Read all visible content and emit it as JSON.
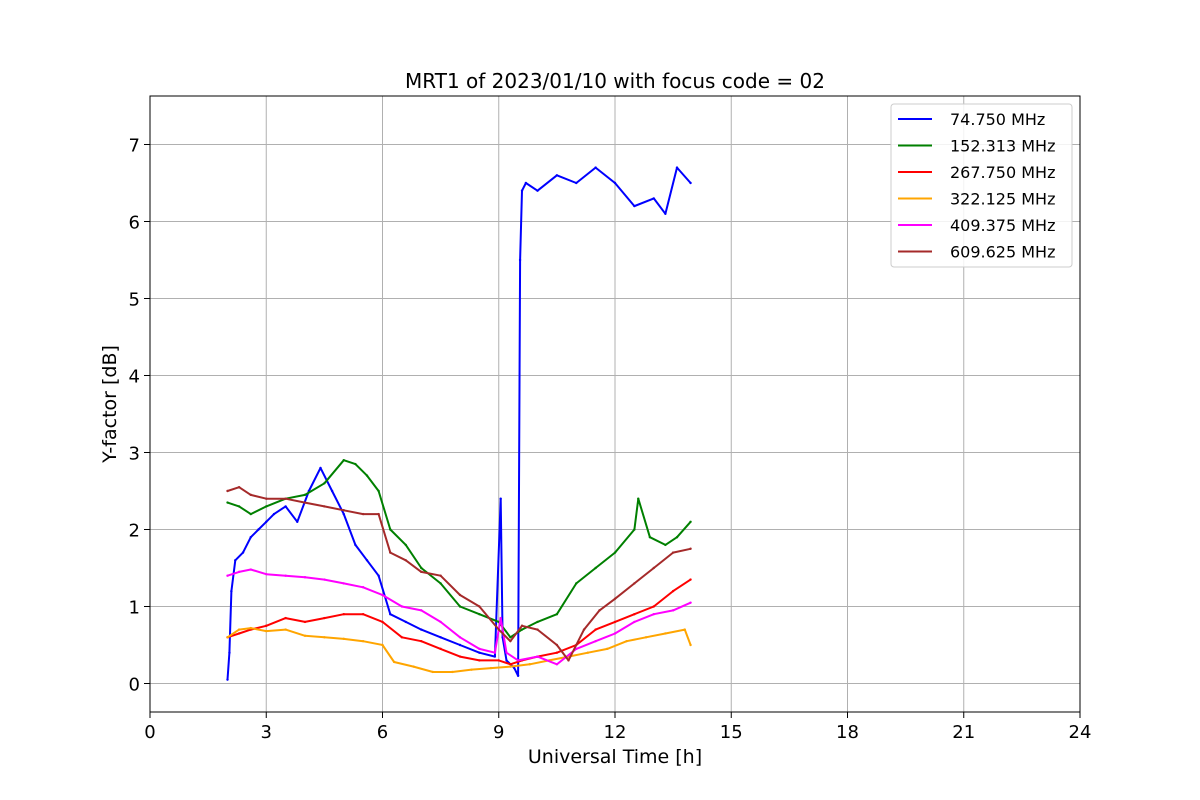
{
  "chart_data": {
    "type": "line",
    "title": "MRT1 of 2023/01/10 with focus code = 02",
    "xlabel": "Universal Time [h]",
    "ylabel": "Y-factor [dB]",
    "xlim": [
      0,
      24
    ],
    "ylim": [
      -0.37,
      7.63
    ],
    "xticks": [
      0,
      3,
      6,
      9,
      12,
      15,
      18,
      21,
      24
    ],
    "yticks": [
      0,
      1,
      2,
      3,
      4,
      5,
      6,
      7
    ],
    "grid": true,
    "legend_position": "top-right",
    "series": [
      {
        "name": " 74.750 MHz",
        "color": "#0000ff",
        "x": [
          2.0,
          2.05,
          2.1,
          2.2,
          2.4,
          2.6,
          2.8,
          3.0,
          3.2,
          3.5,
          3.8,
          4.1,
          4.4,
          4.7,
          5.0,
          5.3,
          5.6,
          5.9,
          6.2,
          6.6,
          7.0,
          7.5,
          8.0,
          8.5,
          8.9,
          9.05,
          9.1,
          9.2,
          9.4,
          9.5,
          9.55,
          9.6,
          9.7,
          10.0,
          10.5,
          11.0,
          11.5,
          12.0,
          12.5,
          13.0,
          13.3,
          13.6,
          13.95
        ],
        "y": [
          0.05,
          0.4,
          1.2,
          1.6,
          1.7,
          1.9,
          2.0,
          2.1,
          2.2,
          2.3,
          2.1,
          2.5,
          2.8,
          2.5,
          2.2,
          1.8,
          1.6,
          1.4,
          0.9,
          0.8,
          0.7,
          0.6,
          0.5,
          0.4,
          0.35,
          2.4,
          0.6,
          0.3,
          0.2,
          0.1,
          5.5,
          6.4,
          6.5,
          6.4,
          6.6,
          6.5,
          6.7,
          6.5,
          6.2,
          6.3,
          6.1,
          6.7,
          6.5
        ]
      },
      {
        "name": "152.313 MHz",
        "color": "#008000",
        "x": [
          2.0,
          2.3,
          2.6,
          3.0,
          3.5,
          4.0,
          4.5,
          5.0,
          5.3,
          5.6,
          5.9,
          6.2,
          6.6,
          7.0,
          7.5,
          8.0,
          8.5,
          9.0,
          9.3,
          9.6,
          10.0,
          10.5,
          11.0,
          11.5,
          12.0,
          12.5,
          12.6,
          12.9,
          13.3,
          13.6,
          13.95
        ],
        "y": [
          2.35,
          2.3,
          2.2,
          2.3,
          2.4,
          2.45,
          2.6,
          2.9,
          2.85,
          2.7,
          2.5,
          2.0,
          1.8,
          1.5,
          1.3,
          1.0,
          0.9,
          0.8,
          0.6,
          0.7,
          0.8,
          0.9,
          1.3,
          1.5,
          1.7,
          2.0,
          2.4,
          1.9,
          1.8,
          1.9,
          2.1
        ]
      },
      {
        "name": "267.750 MHz",
        "color": "#ff0000",
        "x": [
          2.0,
          2.3,
          2.6,
          3.0,
          3.5,
          4.0,
          4.5,
          5.0,
          5.5,
          6.0,
          6.5,
          7.0,
          7.5,
          8.0,
          8.5,
          9.0,
          9.3,
          9.6,
          10.0,
          10.5,
          11.0,
          11.5,
          12.0,
          12.5,
          13.0,
          13.5,
          13.95
        ],
        "y": [
          0.6,
          0.65,
          0.7,
          0.75,
          0.85,
          0.8,
          0.85,
          0.9,
          0.9,
          0.8,
          0.6,
          0.55,
          0.45,
          0.35,
          0.3,
          0.3,
          0.25,
          0.3,
          0.35,
          0.4,
          0.5,
          0.7,
          0.8,
          0.9,
          1.0,
          1.2,
          1.35
        ]
      },
      {
        "name": "322.125 MHz",
        "color": "#ffa500",
        "x": [
          2.0,
          2.3,
          2.6,
          3.0,
          3.5,
          4.0,
          4.5,
          5.0,
          5.5,
          6.0,
          6.3,
          6.8,
          7.3,
          7.8,
          8.3,
          8.8,
          9.3,
          9.8,
          10.3,
          10.8,
          11.3,
          11.8,
          12.3,
          12.8,
          13.3,
          13.8,
          13.95
        ],
        "y": [
          0.6,
          0.7,
          0.72,
          0.68,
          0.7,
          0.62,
          0.6,
          0.58,
          0.55,
          0.5,
          0.28,
          0.22,
          0.15,
          0.15,
          0.18,
          0.2,
          0.22,
          0.25,
          0.3,
          0.35,
          0.4,
          0.45,
          0.55,
          0.6,
          0.65,
          0.7,
          0.5
        ]
      },
      {
        "name": "409.375 MHz",
        "color": "#ff00ff",
        "x": [
          2.0,
          2.3,
          2.6,
          3.0,
          3.5,
          4.0,
          4.5,
          5.0,
          5.5,
          6.0,
          6.5,
          7.0,
          7.5,
          8.0,
          8.5,
          8.9,
          9.05,
          9.2,
          9.5,
          10.0,
          10.5,
          11.0,
          11.5,
          12.0,
          12.5,
          13.0,
          13.5,
          13.95
        ],
        "y": [
          1.4,
          1.45,
          1.48,
          1.42,
          1.4,
          1.38,
          1.35,
          1.3,
          1.25,
          1.15,
          1.0,
          0.95,
          0.8,
          0.6,
          0.45,
          0.4,
          0.85,
          0.4,
          0.3,
          0.35,
          0.25,
          0.45,
          0.55,
          0.65,
          0.8,
          0.9,
          0.95,
          1.05
        ]
      },
      {
        "name": "609.625 MHz",
        "color": "#a52a2a",
        "x": [
          2.0,
          2.3,
          2.6,
          3.0,
          3.5,
          4.0,
          4.5,
          5.0,
          5.5,
          5.9,
          6.2,
          6.6,
          7.0,
          7.5,
          8.0,
          8.5,
          9.0,
          9.3,
          9.6,
          10.0,
          10.5,
          10.8,
          11.2,
          11.6,
          12.0,
          12.5,
          13.0,
          13.5,
          13.95
        ],
        "y": [
          2.5,
          2.55,
          2.45,
          2.4,
          2.4,
          2.35,
          2.3,
          2.25,
          2.2,
          2.2,
          1.7,
          1.6,
          1.45,
          1.4,
          1.15,
          1.0,
          0.7,
          0.55,
          0.75,
          0.7,
          0.5,
          0.3,
          0.7,
          0.95,
          1.1,
          1.3,
          1.5,
          1.7,
          1.75
        ]
      }
    ]
  }
}
